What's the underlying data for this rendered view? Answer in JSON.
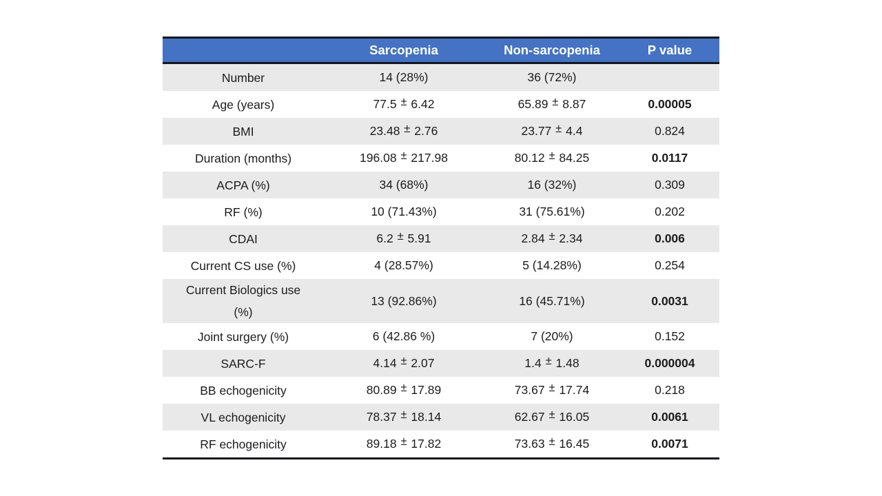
{
  "slide": {
    "background": "#ffffff"
  },
  "table": {
    "header": {
      "cols": [
        "",
        "Sarcopenia",
        "Non-sarcopenia",
        "P value"
      ]
    },
    "rows": [
      {
        "label": "Number",
        "sarcopenia": "14 (28%)",
        "non_sarcopenia": "36 (72%)",
        "p_value": "",
        "p_bold": false
      },
      {
        "label": "Age (years)",
        "sarcopenia": "77.5 ± 6.42",
        "non_sarcopenia": "65.89 ± 8.87",
        "p_value": "0.00005",
        "p_bold": true
      },
      {
        "label": "BMI",
        "sarcopenia": "23.48 ± 2.76",
        "non_sarcopenia": "23.77 ± 4.4",
        "p_value": "0.824",
        "p_bold": false
      },
      {
        "label": "Duration (months)",
        "sarcopenia": "196.08 ± 217.98",
        "non_sarcopenia": "80.12 ± 84.25",
        "p_value": "0.0117",
        "p_bold": true
      },
      {
        "label": "ACPA (%)",
        "sarcopenia": "34 (68%)",
        "non_sarcopenia": "16 (32%)",
        "p_value": "0.309",
        "p_bold": false
      },
      {
        "label": "RF (%)",
        "sarcopenia": "10 (71.43%)",
        "non_sarcopenia": "31 (75.61%)",
        "p_value": "0.202",
        "p_bold": false
      },
      {
        "label": "CDAI",
        "sarcopenia": "6.2 ± 5.91",
        "non_sarcopenia": "2.84 ± 2.34",
        "p_value": "0.006",
        "p_bold": true
      },
      {
        "label": "Current CS use (%)",
        "sarcopenia": "4 (28.57%)",
        "non_sarcopenia": "5 (14.28%)",
        "p_value": "0.254",
        "p_bold": false
      },
      {
        "label": "Current Biologics use (%)",
        "sarcopenia": "13 (92.86%)",
        "non_sarcopenia": "16 (45.71%)",
        "p_value": "0.0031",
        "p_bold": true
      },
      {
        "label": "Joint surgery (%)",
        "sarcopenia": "6 (42.86 %)",
        "non_sarcopenia": "7 (20%)",
        "p_value": "0.152",
        "p_bold": false
      },
      {
        "label": "SARC-F",
        "sarcopenia": "4.14 ± 2.07",
        "non_sarcopenia": "1.4 ± 1.48",
        "p_value": "0.000004",
        "p_bold": true
      },
      {
        "label": "BB echogenicity",
        "sarcopenia": "80.89 ± 17.89",
        "non_sarcopenia": "73.67 ± 17.74",
        "p_value": "0.218",
        "p_bold": false
      },
      {
        "label": "VL echogenicity",
        "sarcopenia": "78.37 ± 18.14",
        "non_sarcopenia": "62.67 ± 16.05",
        "p_value": "0.0061",
        "p_bold": true
      },
      {
        "label": "RF echogenicity",
        "sarcopenia": "89.18 ± 17.82",
        "non_sarcopenia": "73.63 ± 16.45",
        "p_value": "0.0071",
        "p_bold": true
      }
    ],
    "colors": {
      "header_bg": "#4472C4",
      "header_text": "#ffffff",
      "row_alt_bg": "#E9E9E9",
      "row_bg": "#ffffff",
      "rule_line": "#14181f",
      "body_text": "#1c1c1c"
    }
  },
  "chart_data": {
    "type": "table",
    "columns": [
      "",
      "Sarcopenia",
      "Non-sarcopenia",
      "P value"
    ],
    "rows": [
      [
        "Number",
        "14 (28%)",
        "36 (72%)",
        ""
      ],
      [
        "Age (years)",
        "77.5 ± 6.42",
        "65.89 ± 8.87",
        "0.00005"
      ],
      [
        "BMI",
        "23.48 ± 2.76",
        "23.77 ± 4.4",
        "0.824"
      ],
      [
        "Duration (months)",
        "196.08 ± 217.98",
        "80.12 ± 84.25",
        "0.0117"
      ],
      [
        "ACPA (%)",
        "34 (68%)",
        "16 (32%)",
        "0.309"
      ],
      [
        "RF (%)",
        "10 (71.43%)",
        "31 (75.61%)",
        "0.202"
      ],
      [
        "CDAI",
        "6.2 ± 5.91",
        "2.84 ± 2.34",
        "0.006"
      ],
      [
        "Current CS use (%)",
        "4 (28.57%)",
        "5 (14.28%)",
        "0.254"
      ],
      [
        "Current Biologics use (%)",
        "13 (92.86%)",
        "16 (45.71%)",
        "0.0031"
      ],
      [
        "Joint surgery (%)",
        "6 (42.86 %)",
        "7 (20%)",
        "0.152"
      ],
      [
        "SARC-F",
        "4.14 ± 2.07",
        "1.4 ± 1.48",
        "0.000004"
      ],
      [
        "BB echogenicity",
        "80.89 ± 17.89",
        "73.67 ± 17.74",
        "0.218"
      ],
      [
        "VL echogenicity",
        "78.37 ± 18.14",
        "62.67 ± 16.05",
        "0.0061"
      ],
      [
        "RF echogenicity",
        "89.18 ± 17.82",
        "73.63 ± 16.45",
        "0.0071"
      ]
    ],
    "significant_rows_bold_p": [
      "Age (years)",
      "Duration (months)",
      "CDAI",
      "Current Biologics use (%)",
      "SARC-F",
      "VL echogenicity",
      "RF echogenicity"
    ]
  }
}
